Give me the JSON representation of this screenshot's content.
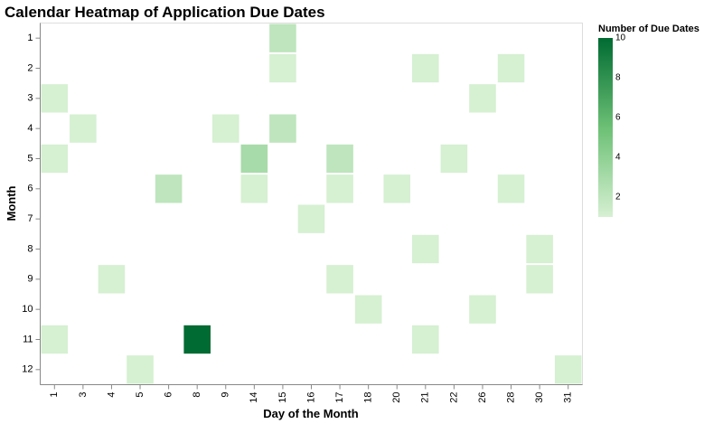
{
  "chart_data": {
    "type": "heatmap",
    "title": "Calendar Heatmap of Application Due Dates",
    "xlabel": "Day of the Month",
    "ylabel": "Month",
    "x_categories": [
      "1",
      "3",
      "4",
      "5",
      "6",
      "8",
      "9",
      "14",
      "15",
      "16",
      "17",
      "18",
      "20",
      "21",
      "22",
      "26",
      "28",
      "30",
      "31"
    ],
    "y_categories": [
      "1",
      "2",
      "3",
      "4",
      "5",
      "6",
      "7",
      "8",
      "9",
      "10",
      "11",
      "12"
    ],
    "cells": [
      {
        "month": "1",
        "day": "15",
        "count": 2
      },
      {
        "month": "2",
        "day": "15",
        "count": 1
      },
      {
        "month": "2",
        "day": "21",
        "count": 1
      },
      {
        "month": "2",
        "day": "28",
        "count": 1
      },
      {
        "month": "3",
        "day": "1",
        "count": 1
      },
      {
        "month": "3",
        "day": "26",
        "count": 1
      },
      {
        "month": "4",
        "day": "3",
        "count": 1
      },
      {
        "month": "4",
        "day": "9",
        "count": 1
      },
      {
        "month": "4",
        "day": "15",
        "count": 2
      },
      {
        "month": "5",
        "day": "1",
        "count": 1
      },
      {
        "month": "5",
        "day": "14",
        "count": 3
      },
      {
        "month": "5",
        "day": "17",
        "count": 2
      },
      {
        "month": "5",
        "day": "22",
        "count": 1
      },
      {
        "month": "6",
        "day": "6",
        "count": 2
      },
      {
        "month": "6",
        "day": "14",
        "count": 1
      },
      {
        "month": "6",
        "day": "17",
        "count": 1
      },
      {
        "month": "6",
        "day": "20",
        "count": 1
      },
      {
        "month": "6",
        "day": "28",
        "count": 1
      },
      {
        "month": "7",
        "day": "16",
        "count": 1
      },
      {
        "month": "8",
        "day": "21",
        "count": 1
      },
      {
        "month": "8",
        "day": "30",
        "count": 1
      },
      {
        "month": "9",
        "day": "4",
        "count": 1
      },
      {
        "month": "9",
        "day": "17",
        "count": 1
      },
      {
        "month": "9",
        "day": "30",
        "count": 1
      },
      {
        "month": "10",
        "day": "18",
        "count": 1
      },
      {
        "month": "10",
        "day": "26",
        "count": 1
      },
      {
        "month": "11",
        "day": "1",
        "count": 1
      },
      {
        "month": "11",
        "day": "8",
        "count": 10
      },
      {
        "month": "11",
        "day": "21",
        "count": 1
      },
      {
        "month": "12",
        "day": "5",
        "count": 1
      },
      {
        "month": "12",
        "day": "31",
        "count": 1
      }
    ],
    "color_scale": {
      "min": 1,
      "max": 10,
      "low_color": "#d6f0d2",
      "high_color": "#006b32"
    },
    "legend": {
      "title": "Number of Due Dates",
      "placement": "right",
      "ticks": [
        10,
        8,
        6,
        4,
        2
      ]
    },
    "grid": false
  }
}
